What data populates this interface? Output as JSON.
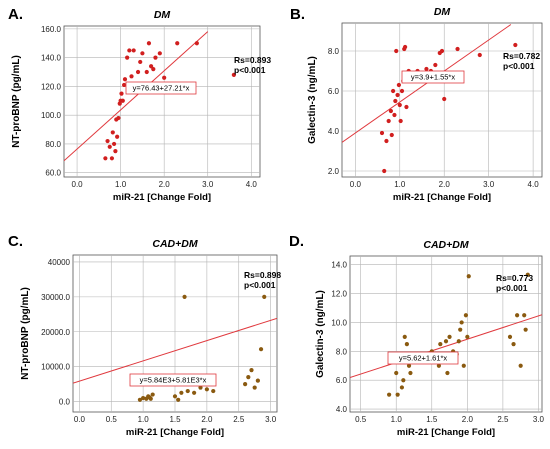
{
  "chart_data": [
    {
      "type": "scatter",
      "panel_label": "A.",
      "title": "DM",
      "xlabel": "miR-21 [Change Fold]",
      "ylabel": "NT-proBNP (pg/mL)",
      "xlim": [
        -0.3,
        4.2
      ],
      "ylim": [
        57,
        162
      ],
      "xticks": [
        0.0,
        1.0,
        2.0,
        3.0,
        4.0
      ],
      "xtick_labels": [
        "0.0",
        "1.0",
        "2.0",
        "3.0",
        "4.0"
      ],
      "yticks": [
        60,
        80,
        100,
        120,
        140,
        160
      ],
      "ytick_labels": [
        "60.0",
        "80.0",
        "100.0",
        "120.0",
        "140.0",
        "160.0"
      ],
      "grid": true,
      "point_color": "#d11f1f",
      "fit_color": "#e0393e",
      "fit": {
        "intercept": 76.43,
        "slope": 27.21,
        "x_range": [
          -0.3,
          3.0
        ]
      },
      "equation": "y=76.43+27.21*x",
      "stats": [
        "Rs=0.893",
        "p<0.001"
      ],
      "stats_position": "top-right",
      "x": [
        0.65,
        0.7,
        0.75,
        0.8,
        0.82,
        0.85,
        0.88,
        0.9,
        0.92,
        0.95,
        0.98,
        1.0,
        1.02,
        1.05,
        1.08,
        1.1,
        1.15,
        1.2,
        1.25,
        1.3,
        1.4,
        1.45,
        1.5,
        1.6,
        1.65,
        1.7,
        1.75,
        1.8,
        1.85,
        1.9,
        2.0,
        2.3,
        2.75,
        3.6
      ],
      "y": [
        70,
        82,
        78,
        70,
        88,
        80,
        75,
        97,
        85,
        98,
        108,
        110,
        115,
        110,
        121,
        125,
        140,
        145,
        127,
        145,
        130,
        137,
        143,
        130,
        150,
        134,
        132,
        140,
        120,
        143,
        126,
        150,
        150,
        128
      ]
    },
    {
      "type": "scatter",
      "panel_label": "B.",
      "title": "DM",
      "xlabel": "miR-21 [Change Fold]",
      "ylabel": "Galectin-3 (ng/mL)",
      "xlim": [
        -0.3,
        4.2
      ],
      "ylim": [
        1.7,
        9.4
      ],
      "xticks": [
        0.0,
        1.0,
        2.0,
        3.0,
        4.0
      ],
      "xtick_labels": [
        "0.0",
        "1.0",
        "2.0",
        "3.0",
        "4.0"
      ],
      "yticks": [
        2,
        4,
        6,
        8
      ],
      "ytick_labels": [
        "2.0",
        "4.0",
        "6.0",
        "8.0"
      ],
      "grid": true,
      "point_color": "#d11f1f",
      "fit_color": "#e0393e",
      "fit": {
        "intercept": 3.9,
        "slope": 1.55,
        "x_range": [
          -0.3,
          3.5
        ]
      },
      "equation": "y=3.9+1.55*x",
      "stats": [
        "Rs=0.782",
        "p<0.001"
      ],
      "stats_position": "top-right",
      "x": [
        0.6,
        0.65,
        0.7,
        0.75,
        0.8,
        0.82,
        0.85,
        0.88,
        0.9,
        0.92,
        0.95,
        0.98,
        1.0,
        1.02,
        1.05,
        1.08,
        1.1,
        1.12,
        1.15,
        1.2,
        1.3,
        1.4,
        1.5,
        1.55,
        1.6,
        1.7,
        1.8,
        1.9,
        1.95,
        2.0,
        2.3,
        2.8,
        3.6
      ],
      "y": [
        3.9,
        2.0,
        3.5,
        4.5,
        5.0,
        3.8,
        6.0,
        4.8,
        5.5,
        8.0,
        5.8,
        6.3,
        5.3,
        4.5,
        6.0,
        6.5,
        8.1,
        8.2,
        5.2,
        7.0,
        6.8,
        7.0,
        6.9,
        6.5,
        7.1,
        7.0,
        7.3,
        7.9,
        8.0,
        5.6,
        8.1,
        7.8,
        8.3
      ]
    },
    {
      "type": "scatter",
      "panel_label": "C.",
      "title": "CAD+DM",
      "xlabel": "miR-21 [Change Fold]",
      "ylabel": "NT-proBNP (pg/mL)",
      "xlim": [
        -0.1,
        3.1
      ],
      "ylim": [
        -3000,
        42000
      ],
      "xticks": [
        0.0,
        0.5,
        1.0,
        1.5,
        2.0,
        2.5,
        3.0
      ],
      "xtick_labels": [
        "0.0",
        "0.5",
        "1.0",
        "1.5",
        "2.0",
        "2.5",
        "3.0"
      ],
      "yticks": [
        0,
        10000,
        20000,
        30000,
        40000
      ],
      "ytick_labels": [
        "0.0",
        "10000.0",
        "20000.0",
        "30000.0",
        "40000"
      ],
      "grid": true,
      "point_color": "#8a5a10",
      "fit_color": "#e0393e",
      "fit": {
        "intercept": 5840,
        "slope": 5810,
        "x_range": [
          -0.1,
          3.1
        ]
      },
      "equation": "y=5.84E3+5.81E3*x",
      "stats": [
        "Rs=0.898",
        "p<0.001"
      ],
      "stats_position": "top-right",
      "x": [
        0.95,
        1.0,
        1.05,
        1.08,
        1.1,
        1.12,
        1.15,
        1.5,
        1.55,
        1.6,
        1.65,
        1.7,
        1.8,
        1.9,
        2.0,
        2.1,
        2.6,
        2.65,
        2.7,
        2.75,
        2.8,
        2.85,
        2.9
      ],
      "y": [
        500,
        1000,
        800,
        1500,
        1200,
        800,
        2000,
        1500,
        500,
        2500,
        30000,
        3000,
        2500,
        4000,
        3500,
        3000,
        5000,
        7000,
        9000,
        4000,
        6000,
        15000,
        30000
      ]
    },
    {
      "type": "scatter",
      "panel_label": "D.",
      "title": "CAD+DM",
      "xlabel": "miR-21 [Change Fold]",
      "ylabel": "Galectin-3 (ng/mL)",
      "xlim": [
        0.35,
        3.05
      ],
      "ylim": [
        3.8,
        14.6
      ],
      "xticks": [
        0.5,
        1.0,
        1.5,
        2.0,
        2.5,
        3.0
      ],
      "xtick_labels": [
        "0.5",
        "1.0",
        "1.5",
        "2.0",
        "2.5",
        "3.0"
      ],
      "yticks": [
        4,
        6,
        8,
        10,
        12,
        14
      ],
      "ytick_labels": [
        "4.0",
        "6.0",
        "8.0",
        "10.0",
        "12.0",
        "14.0"
      ],
      "grid": true,
      "point_color": "#8a5a10",
      "fit_color": "#e0393e",
      "fit": {
        "intercept": 5.62,
        "slope": 1.61,
        "x_range": [
          0.35,
          3.05
        ]
      },
      "equation": "y=5.62+1.61*x",
      "stats": [
        "Rs=0.773",
        "p<0.001"
      ],
      "stats_position": "top-right",
      "x": [
        0.9,
        1.0,
        1.02,
        1.05,
        1.08,
        1.1,
        1.12,
        1.15,
        1.18,
        1.2,
        1.5,
        1.6,
        1.62,
        1.65,
        1.7,
        1.72,
        1.75,
        1.8,
        1.85,
        1.88,
        1.9,
        1.92,
        1.95,
        1.98,
        2.0,
        2.02,
        2.6,
        2.65,
        2.7,
        2.75,
        2.8,
        2.82,
        2.85
      ],
      "y": [
        5.0,
        6.5,
        5.0,
        7.5,
        5.5,
        6.0,
        9.0,
        8.5,
        7.0,
        6.5,
        8.0,
        7.0,
        8.5,
        7.5,
        8.7,
        6.5,
        9.0,
        8.0,
        7.8,
        8.7,
        9.5,
        10.0,
        7.0,
        10.5,
        9.0,
        13.2,
        9.0,
        8.5,
        10.5,
        7.0,
        10.5,
        9.5,
        13.3
      ]
    }
  ]
}
